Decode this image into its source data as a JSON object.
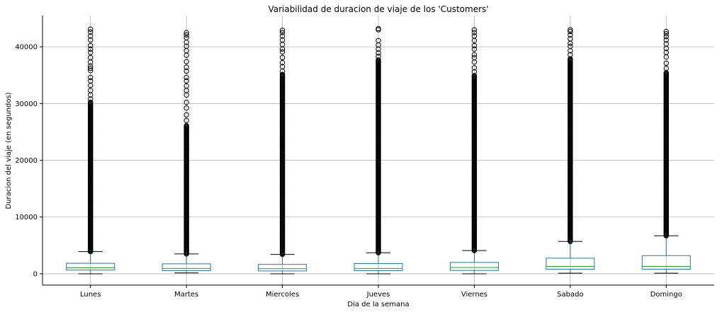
{
  "chart_data": {
    "type": "boxplot",
    "title": "Variabilidad de duracion de viaje de los 'Customers'",
    "xlabel": "Dia de la semana",
    "ylabel": "Duracion del viaje (en segundos)",
    "ylim": [
      -2000,
      45500
    ],
    "yticks": [
      0,
      10000,
      20000,
      30000,
      40000
    ],
    "grid": true,
    "colors": {
      "box": "#1f77b4",
      "median": "#2ca02c",
      "whisker": "#1f77b4",
      "cap": "#000000",
      "flier": "#000000",
      "grid": "#b0b0b0"
    },
    "categories": [
      "Lunes",
      "Martes",
      "Miercoles",
      "Jueves",
      "Viernes",
      "Sabado",
      "Domingo"
    ],
    "boxes": [
      {
        "label": "Lunes",
        "whislo": 0,
        "q1": 650,
        "med": 1050,
        "q3": 1850,
        "whishi": 3900,
        "flier_dense": [
          3900,
          30300
        ],
        "flier_sparse": [
          30800,
          31500,
          32300,
          33200,
          34000,
          34600,
          35800,
          36200,
          36600,
          37300,
          38100,
          39000,
          39600,
          40200,
          41200,
          41900,
          42600,
          43100
        ]
      },
      {
        "label": "Martes",
        "whislo": 150,
        "q1": 550,
        "med": 950,
        "q3": 1750,
        "whishi": 3500,
        "flier_dense": [
          3500,
          26200
        ],
        "flier_sparse": [
          22100,
          27000,
          28000,
          29200,
          30200,
          31500,
          32300,
          33100,
          34000,
          34600,
          35700,
          36400,
          37400,
          38500,
          39300,
          40100,
          40800,
          41600,
          42100,
          42500
        ]
      },
      {
        "label": "Miercoles",
        "whislo": 0,
        "q1": 500,
        "med": 900,
        "q3": 1650,
        "whishi": 3400,
        "flier_dense": [
          3400,
          35200
        ],
        "flier_sparse": [
          22800,
          35700,
          36500,
          37200,
          38100,
          39100,
          39600,
          40400,
          41200,
          41900,
          42500,
          42900
        ]
      },
      {
        "label": "Jueves",
        "whislo": 0,
        "q1": 550,
        "med": 950,
        "q3": 1800,
        "whishi": 3700,
        "flier_dense": [
          3700,
          37800
        ],
        "flier_sparse": [
          22800,
          38300,
          38900,
          39600,
          40300,
          41100,
          43000,
          43200
        ]
      },
      {
        "label": "Viernes",
        "whislo": 0,
        "q1": 600,
        "med": 1100,
        "q3": 2000,
        "whishi": 4100,
        "flier_dense": [
          4100,
          35000
        ],
        "flier_sparse": [
          26500,
          35600,
          36300,
          37300,
          38100,
          38600,
          39600,
          40200,
          41100,
          41900,
          42500,
          43000
        ]
      },
      {
        "label": "Sabado",
        "whislo": 100,
        "q1": 800,
        "med": 1300,
        "q3": 2750,
        "whishi": 5700,
        "flier_dense": [
          5700,
          38000
        ],
        "flier_sparse": [
          38600,
          39300,
          40100,
          40600,
          41400,
          42100,
          42700,
          43000
        ]
      },
      {
        "label": "Domingo",
        "whislo": 100,
        "q1": 800,
        "med": 1300,
        "q3": 3200,
        "whishi": 6700,
        "flier_dense": [
          6700,
          35500
        ],
        "flier_sparse": [
          28500,
          36200,
          37100,
          38200,
          39000,
          39700,
          40500,
          41200,
          41800,
          42300,
          42700
        ]
      }
    ]
  }
}
